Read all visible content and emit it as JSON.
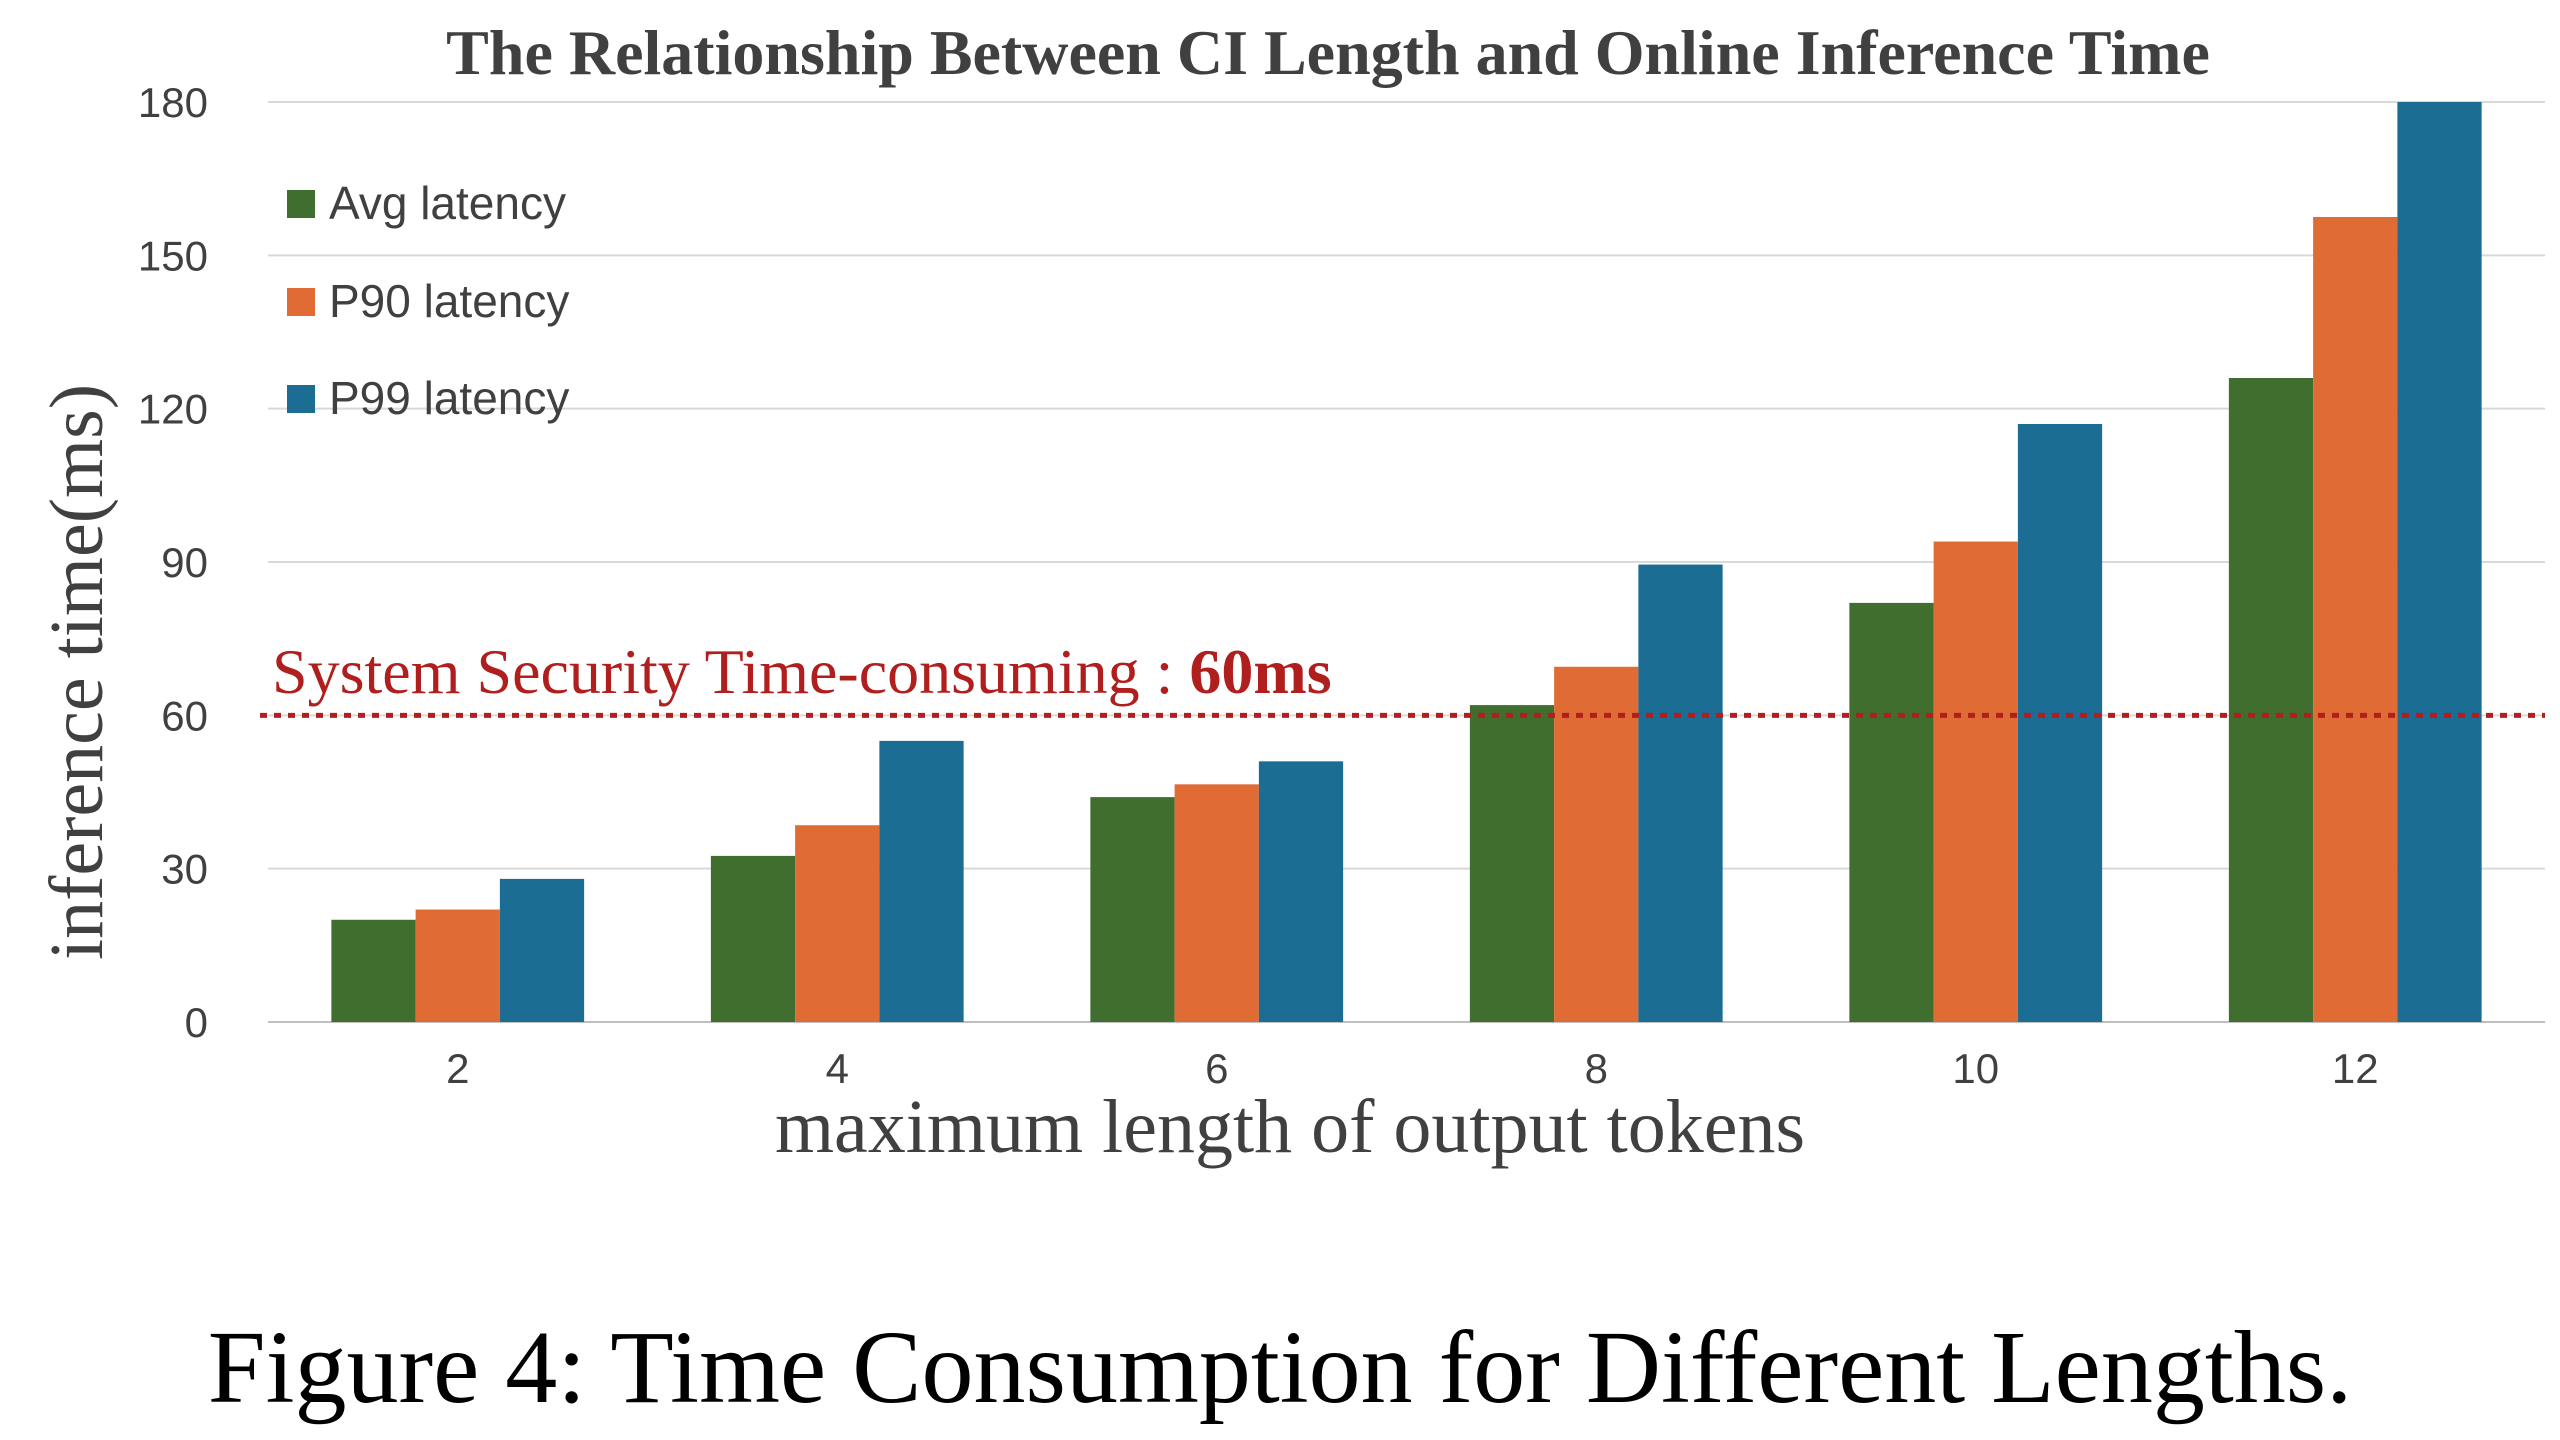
{
  "chart_data": {
    "type": "bar",
    "title": "The Relationship Between CI Length and Online Inference Time",
    "xlabel": "maximum length of output tokens",
    "ylabel": "inference time(ms)",
    "categories": [
      "2",
      "4",
      "6",
      "8",
      "10",
      "12"
    ],
    "ylim": [
      0,
      180
    ],
    "yticks": [
      0,
      30,
      60,
      90,
      120,
      150,
      180
    ],
    "grid": true,
    "legend_position": "top-left",
    "series": [
      {
        "name": "Avg latency",
        "color": "#3f6e2e",
        "values": [
          20,
          32.5,
          44,
          62,
          82,
          126
        ]
      },
      {
        "name": "P90 latency",
        "color": "#e06b35",
        "values": [
          22,
          38.5,
          46.5,
          69.5,
          94,
          157.5
        ]
      },
      {
        "name": "P99 latency",
        "color": "#1b6d93",
        "values": [
          28,
          55,
          51,
          89.5,
          117,
          180
        ]
      }
    ],
    "reference_line": {
      "value": 60,
      "color": "#b01e1e",
      "label_prefix": "System Security Time-consuming : ",
      "label_value": "60ms"
    }
  },
  "caption": "Figure 4: Time Consumption for Different Lengths."
}
